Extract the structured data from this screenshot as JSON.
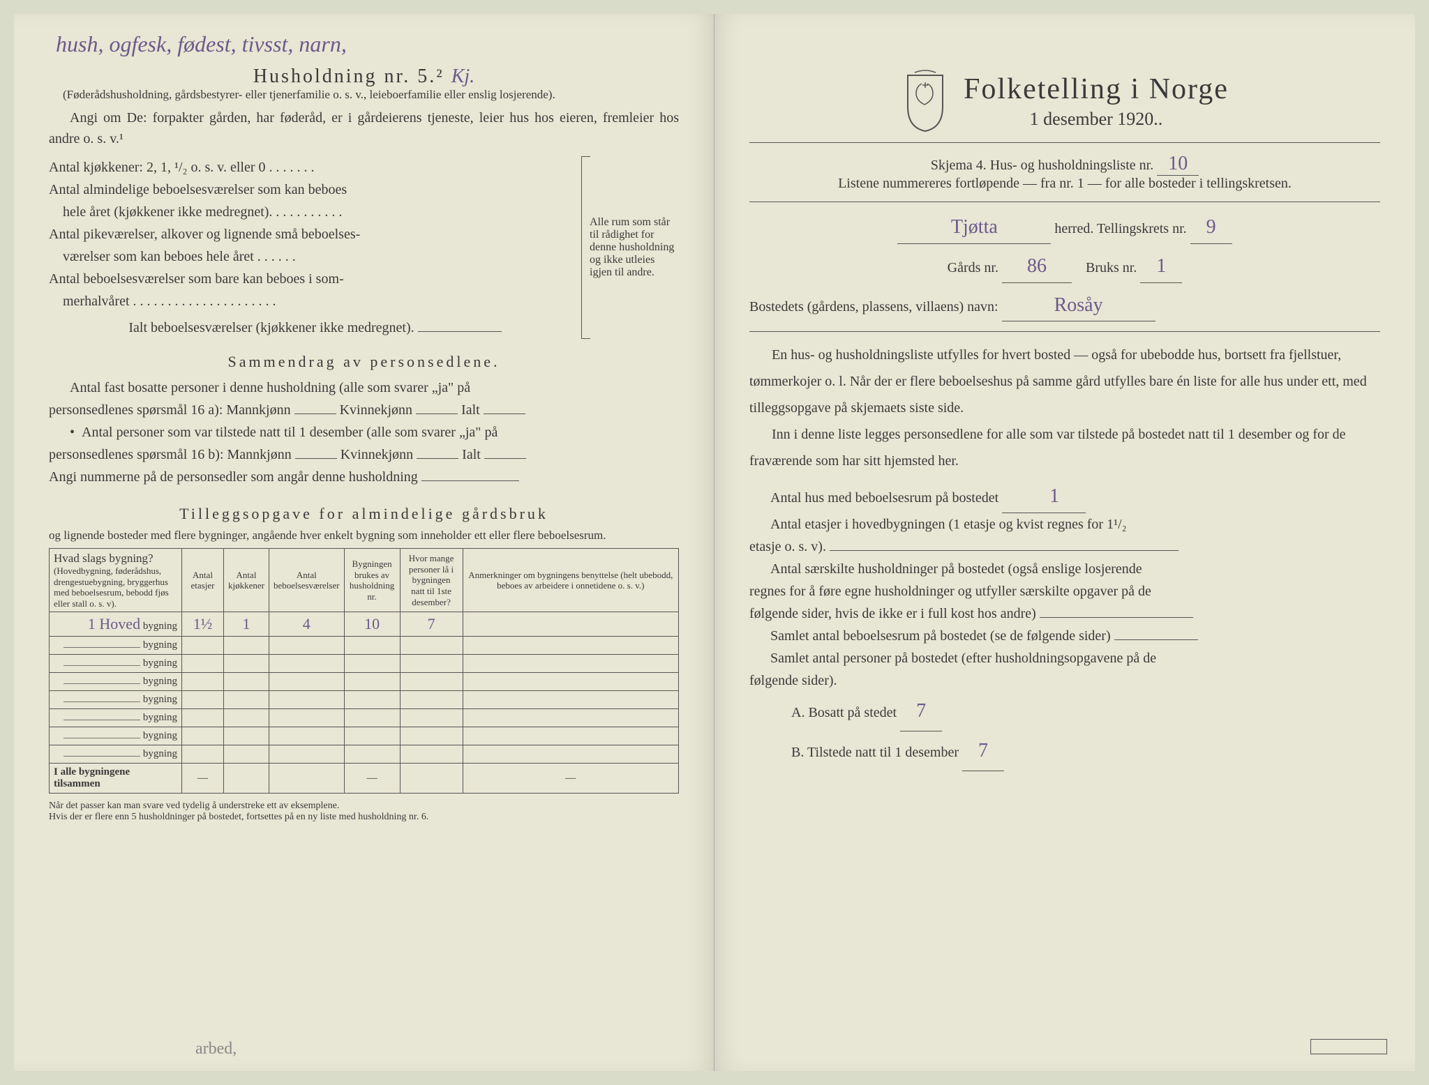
{
  "left": {
    "hw_top": "hush, ogfesk, fødest, tivsst, narn,",
    "title": "Husholdning nr. 5.²",
    "title_hw": "Kj.",
    "sub1": "(Føderådshusholdning, gårdsbestyrer- eller tjenerfamilie o. s. v., leieboerfamilie eller enslig losjerende).",
    "angi": "Angi om De: forpakter gården, har føderåd, er i gårdeierens tjeneste, leier hus hos eieren, fremleier hos andre o. s. v.¹",
    "k1": "Antal kjøkkener: 2, 1, ¹/₂ o. s. v. eller 0 . . . . . . .",
    "k2a": "Antal almindelige beboelsesværelser som kan beboes",
    "k2b": "hele året (kjøkkener ikke medregnet). . . . . . . . . . .",
    "k3a": "Antal pikeværelser, alkover og lignende små beboelses-",
    "k3b": "værelser som kan beboes hele året . . . . . .",
    "k4a": "Antal beboelsesværelser som bare kan beboes i som-",
    "k4b": "merhalvåret . . . . . . . . . . . . . . . . . . . . .",
    "k5": "Ialt beboelsesværelser (kjøkkener ikke medregnet).",
    "brace_text": "Alle rum som står til rådighet for denne husholdning og ikke utleies igjen til andre.",
    "section_sammen": "Sammendrag av personsedlene.",
    "s1a": "Antal fast bosatte personer i denne husholdning (alle som svarer „ja\" på",
    "s1b": "personsedlenes spørsmål 16 a): Mannkjønn",
    "kvinne": "Kvinnekjønn",
    "ialt": "Ialt",
    "s2a": "Antal personer som var tilstede natt til 1 desember (alle som svarer „ja\" på",
    "s2b": "personsedlenes spørsmål 16 b): Mannkjønn",
    "s3": "Angi nummerne på de personsedler som angår denne husholdning",
    "section_tillegg": "Tilleggsopgave for almindelige gårdsbruk",
    "tillegg_sub": "og lignende bosteder med flere bygninger, angående hver enkelt bygning som inneholder ett eller flere beboelsesrum.",
    "th1a": "Hvad slags bygning?",
    "th1b": "(Hovedbygning, føderådshus, drengestuebygning, bryggerhus med beboelsesrum, bebodd fjøs eller stall o. s. v).",
    "th2": "Antal etasjer",
    "th3": "Antal kjøkkener",
    "th4": "Antal beboelsesværelser",
    "th5": "Bygningen brukes av husholdning nr.",
    "th6": "Hvor mange personer lå i bygningen natt til 1ste desember?",
    "th7": "Anmerkninger om bygningens benyttelse (helt ubebodd, beboes av arbeidere i onnetidene o. s. v.)",
    "row1_name": "1 Hoved",
    "bygn": "bygning",
    "row1": {
      "etasjer": "1½",
      "kjokken": "1",
      "vaer": "4",
      "hush": "10",
      "pers": "7"
    },
    "sumrow": "I alle bygningene tilsammen",
    "foot1": "Når det passer kan man svare ved tydelig å understreke ett av eksemplene.",
    "foot2": "Hvis der er flere enn 5 husholdninger på bostedet, fortsettes på en ny liste med husholdning nr. 6.",
    "bottom_hw": "arbed,"
  },
  "right": {
    "main_title": "Folketelling i Norge",
    "date": "1 desember 1920..",
    "skjema": "Skjema 4.  Hus- og husholdningsliste nr.",
    "skjema_nr": "10",
    "listene": "Listene nummereres fortløpende — fra nr. 1 — for alle bosteder i tellingskretsen.",
    "herred_hw": "Tjøtta",
    "herred": "herred.   Tellingskrets nr.",
    "krets_nr": "9",
    "gards": "Gårds nr.",
    "gards_nr": "86",
    "bruks": "Bruks nr.",
    "bruks_nr": "1",
    "bostedets": "Bostedets (gårdens, plassens, villaens) navn:",
    "bosted_hw": "Rosåy",
    "p1": "En hus- og husholdningsliste utfylles for hvert bosted — også for ubebodde hus, bortsett fra fjellstuer, tømmerkojer o. l.  Når der er flere beboelseshus på samme gård utfylles bare én liste for alle hus under ett, med tilleggsopgave på skjemaets siste side.",
    "p2": "Inn i denne liste legges personsedlene for alle som var tilstede på bostedet natt til 1 desember og for de fraværende som har sitt hjemsted her.",
    "q1": "Antal hus med beboelsesrum på bostedet",
    "q1_hw": "1",
    "q2a": "Antal etasjer i hovedbygningen (1 etasje og kvist regnes for 1¹/₂",
    "q2b": "etasje o. s. v).",
    "q3a": "Antal særskilte husholdninger på bostedet (også enslige losjerende",
    "q3b": "regnes for å føre egne husholdninger og utfyller særskilte opgaver på de",
    "q3c": "følgende sider, hvis de ikke er i full kost hos andre)",
    "q4": "Samlet antal beboelsesrum på bostedet (se de følgende sider)",
    "q5a": "Samlet antal personer på bostedet (efter husholdningsopgavene på de",
    "q5b": "følgende sider).",
    "A": "A.  Bosatt på stedet",
    "A_hw": "7",
    "B": "B.  Tilstede natt til 1 desember",
    "B_hw": "7"
  },
  "colors": {
    "paper": "#e8e6d4",
    "ink": "#3a3a3a",
    "handwriting": "#6b5a8a",
    "bg": "#d8dcc8"
  }
}
